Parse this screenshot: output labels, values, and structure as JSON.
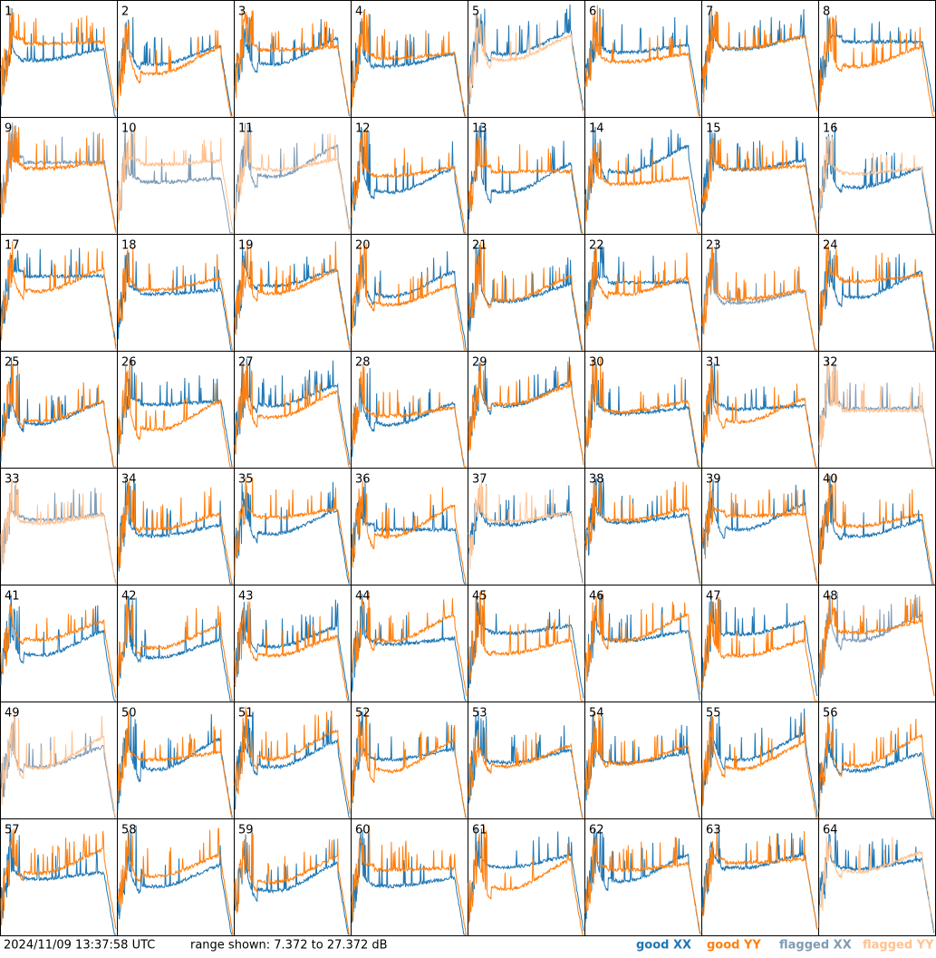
{
  "panels": [
    {
      "label": "1",
      "xx": "good",
      "yy": "good"
    },
    {
      "label": "2",
      "xx": "good",
      "yy": "good"
    },
    {
      "label": "3",
      "xx": "good",
      "yy": "good"
    },
    {
      "label": "4",
      "xx": "good",
      "yy": "good"
    },
    {
      "label": "5",
      "xx": "good",
      "yy": "flagged"
    },
    {
      "label": "6",
      "xx": "good",
      "yy": "good"
    },
    {
      "label": "7",
      "xx": "good",
      "yy": "good"
    },
    {
      "label": "8",
      "xx": "good",
      "yy": "good"
    },
    {
      "label": "9",
      "xx": "flagged",
      "yy": "good"
    },
    {
      "label": "10",
      "xx": "flagged",
      "yy": "flagged"
    },
    {
      "label": "11",
      "xx": "flagged",
      "yy": "flagged"
    },
    {
      "label": "12",
      "xx": "good",
      "yy": "good"
    },
    {
      "label": "13",
      "xx": "good",
      "yy": "good"
    },
    {
      "label": "14",
      "xx": "good",
      "yy": "good"
    },
    {
      "label": "15",
      "xx": "good",
      "yy": "good"
    },
    {
      "label": "16",
      "xx": "good",
      "yy": "flagged"
    },
    {
      "label": "17",
      "xx": "good",
      "yy": "good"
    },
    {
      "label": "18",
      "xx": "good",
      "yy": "good"
    },
    {
      "label": "19",
      "xx": "good",
      "yy": "good"
    },
    {
      "label": "20",
      "xx": "good",
      "yy": "good"
    },
    {
      "label": "21",
      "xx": "good",
      "yy": "good"
    },
    {
      "label": "22",
      "xx": "good",
      "yy": "good"
    },
    {
      "label": "23",
      "xx": "flagged",
      "yy": "good"
    },
    {
      "label": "24",
      "xx": "good",
      "yy": "good"
    },
    {
      "label": "25",
      "xx": "good",
      "yy": "good"
    },
    {
      "label": "26",
      "xx": "good",
      "yy": "good"
    },
    {
      "label": "27",
      "xx": "good",
      "yy": "good"
    },
    {
      "label": "28",
      "xx": "good",
      "yy": "good"
    },
    {
      "label": "29",
      "xx": "good",
      "yy": "good"
    },
    {
      "label": "30",
      "xx": "good",
      "yy": "good"
    },
    {
      "label": "31",
      "xx": "good",
      "yy": "good"
    },
    {
      "label": "32",
      "xx": "flagged",
      "yy": "flagged"
    },
    {
      "label": "33",
      "xx": "flagged",
      "yy": "flagged"
    },
    {
      "label": "34",
      "xx": "good",
      "yy": "good"
    },
    {
      "label": "35",
      "xx": "good",
      "yy": "good"
    },
    {
      "label": "36",
      "xx": "good",
      "yy": "good"
    },
    {
      "label": "37",
      "xx": "good",
      "yy": "flagged"
    },
    {
      "label": "38",
      "xx": "good",
      "yy": "good"
    },
    {
      "label": "39",
      "xx": "good",
      "yy": "good"
    },
    {
      "label": "40",
      "xx": "good",
      "yy": "good"
    },
    {
      "label": "41",
      "xx": "good",
      "yy": "good"
    },
    {
      "label": "42",
      "xx": "good",
      "yy": "good"
    },
    {
      "label": "43",
      "xx": "good",
      "yy": "good"
    },
    {
      "label": "44",
      "xx": "good",
      "yy": "good"
    },
    {
      "label": "45",
      "xx": "good",
      "yy": "good"
    },
    {
      "label": "46",
      "xx": "good",
      "yy": "good"
    },
    {
      "label": "47",
      "xx": "good",
      "yy": "good"
    },
    {
      "label": "48",
      "xx": "flagged",
      "yy": "good"
    },
    {
      "label": "49",
      "xx": "flagged",
      "yy": "flagged"
    },
    {
      "label": "50",
      "xx": "good",
      "yy": "good"
    },
    {
      "label": "51",
      "xx": "good",
      "yy": "good"
    },
    {
      "label": "52",
      "xx": "good",
      "yy": "good"
    },
    {
      "label": "53",
      "xx": "good",
      "yy": "good"
    },
    {
      "label": "54",
      "xx": "good",
      "yy": "good"
    },
    {
      "label": "55",
      "xx": "good",
      "yy": "good"
    },
    {
      "label": "56",
      "xx": "good",
      "yy": "good"
    },
    {
      "label": "57",
      "xx": "good",
      "yy": "good"
    },
    {
      "label": "58",
      "xx": "good",
      "yy": "good"
    },
    {
      "label": "59",
      "xx": "good",
      "yy": "good"
    },
    {
      "label": "60",
      "xx": "good",
      "yy": "good"
    },
    {
      "label": "61",
      "xx": "good",
      "yy": "good"
    },
    {
      "label": "62",
      "xx": "good",
      "yy": "good"
    },
    {
      "label": "63",
      "xx": "good",
      "yy": "good"
    },
    {
      "label": "64",
      "xx": "good",
      "yy": "flagged"
    }
  ],
  "footer": {
    "timestamp": "2024/11/09 13:37:58 UTC",
    "range": "range shown: 7.372 to 27.372 dB"
  },
  "legend": [
    {
      "key": "good_xx",
      "label": "good XX",
      "color": "#1f77b4"
    },
    {
      "key": "good_yy",
      "label": "good YY",
      "color": "#ff7f0e"
    },
    {
      "key": "flagged_xx",
      "label": "flagged XX",
      "color": "#7f9bb5"
    },
    {
      "key": "flagged_yy",
      "label": "flagged YY",
      "color": "#ffc291"
    }
  ]
}
